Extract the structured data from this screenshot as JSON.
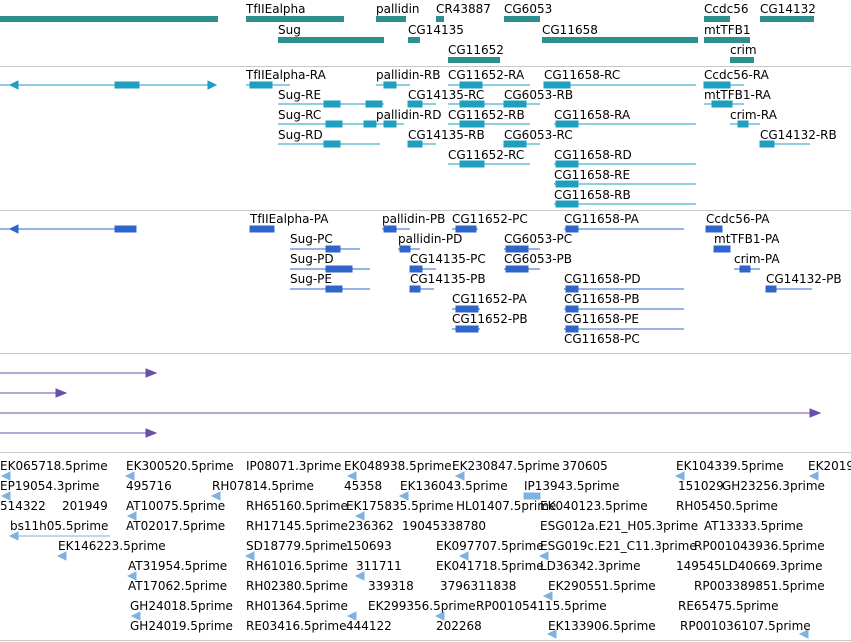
{
  "colors": {
    "gene": "#2f8f8f",
    "mrna": "#1e9fbf",
    "protein": "#2f64c8",
    "cdna": "#6a4fa8",
    "est": "#7fb2e0",
    "separator": "#c8c8c8"
  },
  "tracks": {
    "gene": {
      "labels": [
        "TfIIEalpha",
        "pallidin",
        "CR43887",
        "CG6053",
        "Ccdc56",
        "CG14132",
        "Sug",
        "CG14135",
        "CG11658",
        "mtTFB1",
        "CG11652",
        "crim"
      ]
    },
    "mrna": {
      "labels": [
        "TfIIEalpha-RA",
        "pallidin-RB",
        "CG11652-RA",
        "CG11658-RC",
        "Ccdc56-RA",
        "Sug-RE",
        "CG14135-RC",
        "CG6053-RB",
        "mtTFB1-RA",
        "Sug-RC",
        "pallidin-RD",
        "CG11652-RB",
        "CG11658-RA",
        "crim-RA",
        "Sug-RD",
        "CG14135-RB",
        "CG6053-RC",
        "CG14132-RB",
        "CG11652-RC",
        "CG11658-RD",
        "CG11658-RE",
        "CG11658-RB"
      ]
    },
    "protein": {
      "labels": [
        "TfIIEalpha-PA",
        "pallidin-PB",
        "CG11652-PC",
        "CG11658-PA",
        "Ccdc56-PA",
        "Sug-PC",
        "pallidin-PD",
        "CG6053-PC",
        "mtTFB1-PA",
        "Sug-PD",
        "CG14135-PC",
        "CG6053-PB",
        "crim-PA",
        "Sug-PE",
        "CG14135-PB",
        "CG11658-PD",
        "CG14132-PB",
        "CG11652-PA",
        "CG11658-PB",
        "CG11652-PB",
        "CG11658-PE",
        "CG11658-PC"
      ]
    },
    "est": {
      "labels": [
        "EK065718.5prime",
        "EK300520.5prime",
        "IP08071.3prime",
        "EK048938.5prime",
        "EK230847.5prime",
        "370605",
        "EK104339.5prime",
        "EK2019",
        "EP19054.3prime",
        "495716",
        "RH07814.5prime",
        "45358",
        "EK136043.5prime",
        "IP13943.5prime",
        "151029",
        "GH23256.3prime",
        "514322",
        "201949",
        "AT10075.5prime",
        "RH65160.5prime",
        "EK175835.5prime",
        "HL01407.5prime",
        "EK040123.5prime",
        "RH05450.5prime",
        "bs11h05.5prime",
        "AT02017.5prime",
        "RH17145.5prime",
        "236362",
        "19045338780",
        "ESG012a.E21_H05.3prime",
        "AT13333.5prime",
        "EK146223.5prime",
        "SD18779.5prime",
        "150693",
        "EK097707.5prime",
        "ESG019c.E21_C11.3prime",
        "RP001043936.5prime",
        "AT31954.5prime",
        "RH61016.5prime",
        "311711",
        "EK041718.5prime",
        "LD36342.3prime",
        "149545",
        "LD40669.3prime",
        "AT17062.5prime",
        "RH02380.5prime",
        "339318",
        "3796311838",
        "EK290551.5prime",
        "RP003389851.5prime",
        "GH24018.5prime",
        "RH01364.5prime",
        "EK299356.5prime",
        "RP001054115.5prime",
        "RE65475.5prime",
        "GH24019.5prime",
        "RE03416.5prime",
        "444122",
        "202268",
        "EK133906.5prime",
        "RP001036107.5prime"
      ]
    }
  }
}
